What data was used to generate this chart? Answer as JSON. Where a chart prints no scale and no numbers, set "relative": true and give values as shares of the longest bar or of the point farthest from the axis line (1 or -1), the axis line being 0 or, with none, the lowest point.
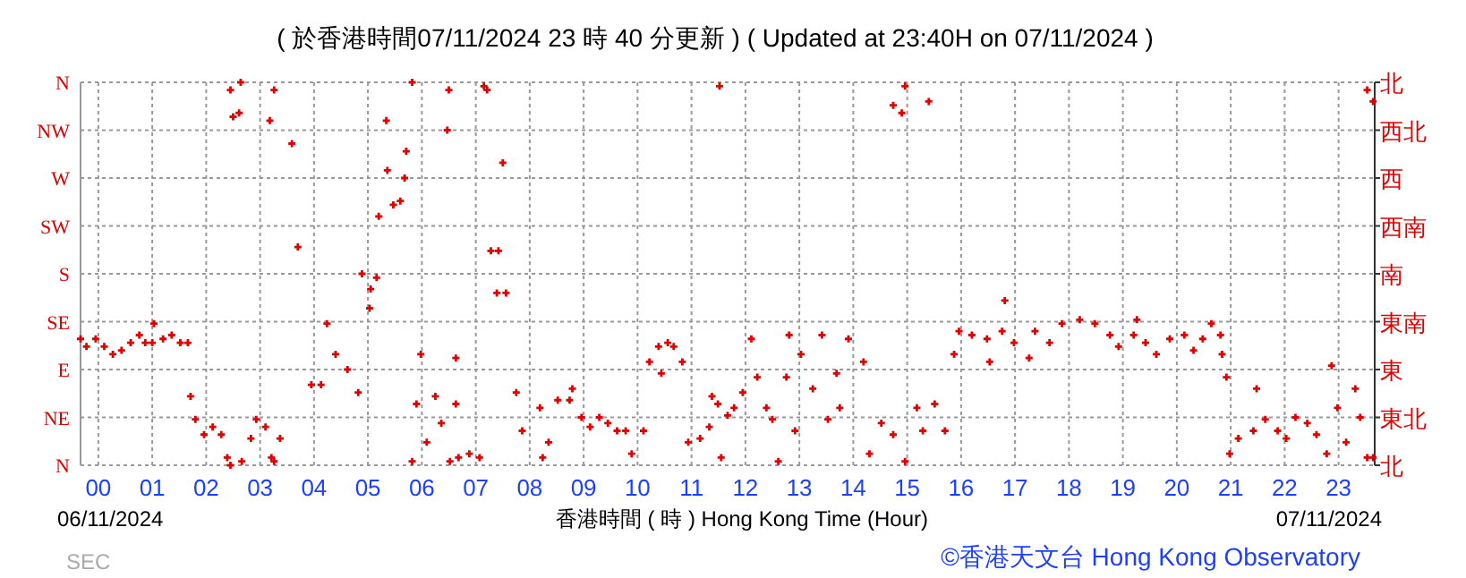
{
  "chart_data": {
    "type": "scatter",
    "title": "( 於香港時間07/11/2024 23 時 40 分更新 ) ( Updated at 23:40H on 07/11/2024 )",
    "xlabel": "香港時間 ( 時 )  Hong Kong Time (Hour)",
    "annotations": [
      "06/11/2024",
      "07/11/2024",
      "SEC",
      "©香港天文台 Hong Kong Observatory"
    ],
    "xlim": [
      -0.33,
      23.67
    ],
    "xticks": [
      {
        "value": 0,
        "label": "00"
      },
      {
        "value": 1,
        "label": "01"
      },
      {
        "value": 2,
        "label": "02"
      },
      {
        "value": 3,
        "label": "03"
      },
      {
        "value": 4,
        "label": "04"
      },
      {
        "value": 5,
        "label": "05"
      },
      {
        "value": 6,
        "label": "06"
      },
      {
        "value": 7,
        "label": "07"
      },
      {
        "value": 8,
        "label": "08"
      },
      {
        "value": 9,
        "label": "09"
      },
      {
        "value": 10,
        "label": "10"
      },
      {
        "value": 11,
        "label": "11"
      },
      {
        "value": 12,
        "label": "12"
      },
      {
        "value": 13,
        "label": "13"
      },
      {
        "value": 14,
        "label": "14"
      },
      {
        "value": 15,
        "label": "15"
      },
      {
        "value": 16,
        "label": "16"
      },
      {
        "value": 17,
        "label": "17"
      },
      {
        "value": 18,
        "label": "18"
      },
      {
        "value": 19,
        "label": "19"
      },
      {
        "value": 20,
        "label": "20"
      },
      {
        "value": 21,
        "label": "21"
      },
      {
        "value": 22,
        "label": "22"
      },
      {
        "value": 23,
        "label": "23"
      }
    ],
    "relative": true,
    "y_categories": [
      "N",
      "NW",
      "W",
      "SW",
      "S",
      "SE",
      "E",
      "NE",
      "N"
    ],
    "y2_categories": [
      "北",
      "西北",
      "西",
      "西南",
      "南",
      "東南",
      "東",
      "東北",
      "北"
    ],
    "grid": true,
    "marker": "cross",
    "series": [
      {
        "color": "#e00000",
        "x": [
          -0.33,
          -0.22,
          -0.05,
          0.11,
          0.27,
          0.43,
          0.6,
          0.76,
          0.87,
          1.0,
          1.03,
          1.2,
          1.36,
          1.52,
          1.66,
          1.71,
          1.8,
          1.96,
          2.12,
          2.28,
          2.39,
          2.45,
          2.45,
          2.5,
          2.61,
          2.64,
          2.66,
          2.83,
          2.93,
          3.1,
          3.21,
          3.26,
          3.18,
          3.26,
          3.37,
          3.59,
          3.7,
          3.95,
          4.13,
          4.24,
          4.4,
          4.62,
          4.82,
          4.89,
          5.05,
          5.16,
          5.03,
          5.2,
          5.36,
          5.47,
          5.6,
          5.68,
          5.71,
          5.34,
          5.82,
          5.82,
          5.9,
          5.98,
          6.09,
          6.25,
          6.36,
          6.47,
          6.5,
          6.52,
          6.63,
          6.63,
          6.68,
          6.88,
          7.07,
          7.15,
          7.21,
          7.28,
          7.39,
          7.42,
          7.5,
          7.56,
          7.75,
          7.86,
          8.19,
          8.24,
          8.35,
          8.52,
          8.74,
          8.79,
          8.96,
          9.12,
          9.29,
          9.45,
          9.62,
          9.78,
          9.89,
          10.11,
          10.22,
          10.39,
          10.44,
          10.56,
          10.67,
          10.83,
          10.94,
          11.16,
          11.33,
          11.38,
          11.49,
          11.55,
          11.52,
          11.67,
          11.79,
          11.95,
          12.11,
          12.22,
          12.39,
          12.5,
          12.61,
          12.76,
          12.81,
          12.92,
          13.03,
          13.25,
          13.42,
          13.53,
          13.69,
          13.75,
          13.91,
          14.19,
          14.3,
          14.52,
          14.74,
          14.74,
          14.9,
          14.96,
          14.96,
          15.18,
          15.29,
          15.4,
          15.51,
          15.7,
          15.87,
          15.96,
          16.2,
          16.48,
          16.53,
          16.76,
          16.81,
          16.98,
          17.26,
          17.37,
          17.64,
          17.87,
          18.2,
          18.48,
          18.76,
          18.92,
          19.2,
          19.26,
          19.42,
          19.62,
          19.87,
          20.14,
          20.31,
          20.48,
          20.64,
          20.81,
          20.84,
          20.92,
          20.98,
          21.14,
          21.42,
          21.48,
          21.64,
          21.87,
          22.03,
          22.2,
          22.42,
          22.59,
          22.78,
          22.87,
          22.98,
          23.14,
          23.31,
          23.4,
          23.53,
          23.64,
          23.53,
          23.64
        ],
        "values": [
          0.33,
          0.31,
          0.33,
          0.31,
          0.29,
          0.3,
          0.32,
          0.34,
          0.32,
          0.32,
          0.37,
          0.33,
          0.34,
          0.32,
          0.32,
          0.18,
          0.12,
          0.08,
          0.1,
          0.08,
          0.02,
          0,
          0.98,
          0.91,
          0.92,
          1,
          0.01,
          0.07,
          0.12,
          0.1,
          0.02,
          0.01,
          0.9,
          0.98,
          0.07,
          0.84,
          0.57,
          0.21,
          0.21,
          0.37,
          0.29,
          0.25,
          0.19,
          0.5,
          0.46,
          0.49,
          0.41,
          0.65,
          0.77,
          0.68,
          0.69,
          0.75,
          0.82,
          0.9,
          1,
          0.01,
          0.16,
          0.29,
          0.06,
          0.18,
          0.11,
          0.875,
          0.98,
          0.01,
          0.28,
          0.16,
          0.02,
          0.03,
          0.02,
          0.99,
          0.98,
          0.56,
          0.45,
          0.56,
          0.79,
          0.45,
          0.19,
          0.09,
          0.15,
          0.02,
          0.06,
          0.17,
          0.17,
          0.2,
          0.125,
          0.1,
          0.125,
          0.11,
          0.09,
          0.09,
          0.03,
          0.09,
          0.27,
          0.31,
          0.24,
          0.32,
          0.31,
          0.27,
          0.06,
          0.07,
          0.1,
          0.18,
          0.16,
          0.02,
          0.99,
          0.13,
          0.15,
          0.19,
          0.33,
          0.23,
          0.15,
          0.12,
          0.01,
          0.23,
          0.34,
          0.09,
          0.29,
          0.2,
          0.34,
          0.12,
          0.24,
          0.15,
          0.33,
          0.27,
          0.03,
          0.11,
          0.08,
          0.94,
          0.92,
          0.99,
          0.01,
          0.15,
          0.09,
          0.95,
          0.16,
          0.09,
          0.29,
          0.35,
          0.34,
          0.33,
          0.27,
          0.35,
          0.43,
          0.32,
          0.28,
          0.35,
          0.32,
          0.37,
          0.38,
          0.37,
          0.34,
          0.31,
          0.34,
          0.38,
          0.32,
          0.29,
          0.33,
          0.34,
          0.3,
          0.33,
          0.37,
          0.34,
          0.29,
          0.23,
          0.03,
          0.07,
          0.09,
          0.2,
          0.12,
          0.09,
          0.07,
          0.125,
          0.11,
          0.08,
          0.03,
          0.26,
          0.15,
          0.06,
          0.2,
          0.125,
          0.02,
          0.02,
          0.98,
          0.95
        ]
      }
    ]
  }
}
